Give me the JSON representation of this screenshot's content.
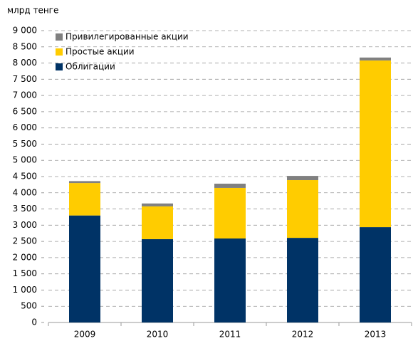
{
  "chart_data": {
    "type": "bar",
    "stacked": true,
    "ylabel": "млрд тенге",
    "categories": [
      "2009",
      "2010",
      "2011",
      "2012",
      "2013"
    ],
    "series": [
      {
        "name": "Облигации",
        "color": "#003366",
        "values": [
          3300,
          2570,
          2590,
          2610,
          2940
        ]
      },
      {
        "name": "Простые акции",
        "color": "#ffcc00",
        "values": [
          1000,
          1010,
          1560,
          1780,
          5140
        ]
      },
      {
        "name": "Привилегированные акции",
        "color": "#808080",
        "values": [
          60,
          90,
          130,
          130,
          90
        ]
      }
    ],
    "ylim": [
      0,
      9000
    ],
    "yticks": [
      0,
      500,
      {
        "value": 1000,
        "label": "1 000"
      },
      {
        "value": 1500,
        "label": "1 500"
      },
      {
        "value": 2000,
        "label": "2 000"
      },
      {
        "value": 2500,
        "label": "2 500"
      },
      {
        "value": 3000,
        "label": "3 000"
      },
      {
        "value": 3500,
        "label": "3 500"
      },
      {
        "value": 4000,
        "label": "4 000"
      },
      {
        "value": 4500,
        "label": "4 500"
      },
      {
        "value": 5000,
        "label": "5 000"
      },
      {
        "value": 5500,
        "label": "5 500"
      },
      {
        "value": 6000,
        "label": "6 000"
      },
      {
        "value": 6500,
        "label": "6 500"
      },
      {
        "value": 7000,
        "label": "7 000"
      },
      {
        "value": 7500,
        "label": "7 500"
      },
      {
        "value": 8000,
        "label": "8 000"
      },
      {
        "value": 8500,
        "label": "8 500"
      },
      {
        "value": 9000,
        "label": "9 000"
      }
    ],
    "grid": true,
    "legend": "upper left"
  }
}
